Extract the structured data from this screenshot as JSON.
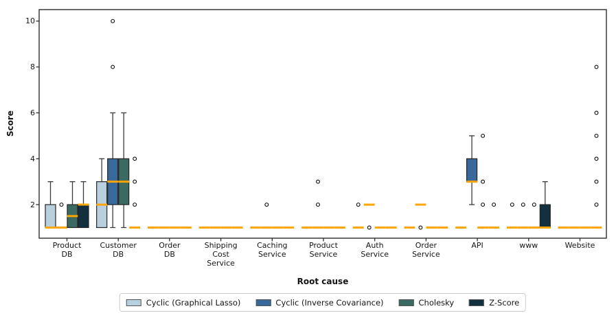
{
  "chart_data": {
    "type": "boxplot",
    "title": "",
    "xlabel": "Root cause",
    "ylabel": "Score",
    "yticks": [
      2,
      4,
      6,
      8,
      10
    ],
    "ylim": [
      0.5,
      10.5
    ],
    "grid": false,
    "legend_position": "bottom",
    "median_color": "#FFA500",
    "categories": [
      "Product\nDB",
      "Customer\nDB",
      "Order\nDB",
      "Shipping\nCost\nService",
      "Caching\nService",
      "Product\nService",
      "Auth\nService",
      "Order\nService",
      "API",
      "www",
      "Website"
    ],
    "series": [
      {
        "name": "Cyclic (Graphical Lasso)",
        "color": "#b8cfdd",
        "boxes": [
          {
            "q1": 1,
            "med": 1,
            "q3": 2,
            "whislo": 1,
            "whishi": 3,
            "fliers": []
          },
          {
            "q1": 1,
            "med": 2,
            "q3": 3,
            "whislo": 1,
            "whishi": 4,
            "fliers": []
          },
          {
            "q1": 1,
            "med": 1,
            "q3": 1,
            "whislo": 1,
            "whishi": 1,
            "fliers": []
          },
          {
            "q1": 1,
            "med": 1,
            "q3": 1,
            "whislo": 1,
            "whishi": 1,
            "fliers": []
          },
          {
            "q1": 1,
            "med": 1,
            "q3": 1,
            "whislo": 1,
            "whishi": 1,
            "fliers": []
          },
          {
            "q1": 1,
            "med": 1,
            "q3": 1,
            "whislo": 1,
            "whishi": 1,
            "fliers": []
          },
          {
            "q1": 1,
            "med": 1,
            "q3": 1,
            "whislo": 1,
            "whishi": 1,
            "fliers": [
              2
            ]
          },
          {
            "q1": 1,
            "med": 1,
            "q3": 1,
            "whislo": 1,
            "whishi": 1,
            "fliers": []
          },
          {
            "q1": 1,
            "med": 1,
            "q3": 1,
            "whislo": 1,
            "whishi": 1,
            "fliers": []
          },
          {
            "q1": 1,
            "med": 1,
            "q3": 1,
            "whislo": 1,
            "whishi": 1,
            "fliers": [
              2
            ]
          },
          {
            "q1": 1,
            "med": 1,
            "q3": 1,
            "whislo": 1,
            "whishi": 1,
            "fliers": []
          }
        ]
      },
      {
        "name": "Cyclic (Inverse Covariance)",
        "color": "#39699a",
        "boxes": [
          {
            "q1": 1,
            "med": 1,
            "q3": 1,
            "whislo": 1,
            "whishi": 1,
            "fliers": [
              2
            ]
          },
          {
            "q1": 2,
            "med": 3,
            "q3": 4,
            "whislo": 1,
            "whishi": 6,
            "fliers": [
              8,
              10
            ]
          },
          {
            "q1": 1,
            "med": 1,
            "q3": 1,
            "whislo": 1,
            "whishi": 1,
            "fliers": []
          },
          {
            "q1": 1,
            "med": 1,
            "q3": 1,
            "whislo": 1,
            "whishi": 1,
            "fliers": []
          },
          {
            "q1": 1,
            "med": 1,
            "q3": 1,
            "whislo": 1,
            "whishi": 1,
            "fliers": [
              2
            ]
          },
          {
            "q1": 1,
            "med": 1,
            "q3": 1,
            "whislo": 1,
            "whishi": 1,
            "fliers": [
              2,
              3
            ]
          },
          {
            "q1": 2,
            "med": 2,
            "q3": 2,
            "whislo": 2,
            "whishi": 2,
            "fliers": [
              1
            ]
          },
          {
            "q1": 2,
            "med": 2,
            "q3": 2,
            "whislo": 2,
            "whishi": 2,
            "fliers": [
              1
            ]
          },
          {
            "q1": 3,
            "med": 3,
            "q3": 4,
            "whislo": 2,
            "whishi": 5,
            "fliers": []
          },
          {
            "q1": 1,
            "med": 1,
            "q3": 1,
            "whislo": 1,
            "whishi": 1,
            "fliers": [
              2
            ]
          },
          {
            "q1": 1,
            "med": 1,
            "q3": 1,
            "whislo": 1,
            "whishi": 1,
            "fliers": []
          }
        ]
      },
      {
        "name": "Cholesky",
        "color": "#3a6a62",
        "boxes": [
          {
            "q1": 1,
            "med": 1.5,
            "q3": 2,
            "whislo": 1,
            "whishi": 3,
            "fliers": []
          },
          {
            "q1": 2,
            "med": 3,
            "q3": 4,
            "whislo": 1,
            "whishi": 6,
            "fliers": []
          },
          {
            "q1": 1,
            "med": 1,
            "q3": 1,
            "whislo": 1,
            "whishi": 1,
            "fliers": []
          },
          {
            "q1": 1,
            "med": 1,
            "q3": 1,
            "whislo": 1,
            "whishi": 1,
            "fliers": []
          },
          {
            "q1": 1,
            "med": 1,
            "q3": 1,
            "whislo": 1,
            "whishi": 1,
            "fliers": []
          },
          {
            "q1": 1,
            "med": 1,
            "q3": 1,
            "whislo": 1,
            "whishi": 1,
            "fliers": []
          },
          {
            "q1": 1,
            "med": 1,
            "q3": 1,
            "whislo": 1,
            "whishi": 1,
            "fliers": []
          },
          {
            "q1": 1,
            "med": 1,
            "q3": 1,
            "whislo": 1,
            "whishi": 1,
            "fliers": []
          },
          {
            "q1": 1,
            "med": 1,
            "q3": 1,
            "whislo": 1,
            "whishi": 1,
            "fliers": [
              2,
              3,
              5
            ]
          },
          {
            "q1": 1,
            "med": 1,
            "q3": 1,
            "whislo": 1,
            "whishi": 1,
            "fliers": [
              2
            ]
          },
          {
            "q1": 1,
            "med": 1,
            "q3": 1,
            "whislo": 1,
            "whishi": 1,
            "fliers": []
          }
        ]
      },
      {
        "name": "Z-Score",
        "color": "#12303e",
        "boxes": [
          {
            "q1": 1,
            "med": 2,
            "q3": 2,
            "whislo": 1,
            "whishi": 3,
            "fliers": []
          },
          {
            "q1": 1,
            "med": 1,
            "q3": 1,
            "whislo": 1,
            "whishi": 1,
            "fliers": [
              2,
              3,
              4
            ]
          },
          {
            "q1": 1,
            "med": 1,
            "q3": 1,
            "whislo": 1,
            "whishi": 1,
            "fliers": []
          },
          {
            "q1": 1,
            "med": 1,
            "q3": 1,
            "whislo": 1,
            "whishi": 1,
            "fliers": []
          },
          {
            "q1": 1,
            "med": 1,
            "q3": 1,
            "whislo": 1,
            "whishi": 1,
            "fliers": []
          },
          {
            "q1": 1,
            "med": 1,
            "q3": 1,
            "whislo": 1,
            "whishi": 1,
            "fliers": []
          },
          {
            "q1": 1,
            "med": 1,
            "q3": 1,
            "whislo": 1,
            "whishi": 1,
            "fliers": []
          },
          {
            "q1": 1,
            "med": 1,
            "q3": 1,
            "whislo": 1,
            "whishi": 1,
            "fliers": []
          },
          {
            "q1": 1,
            "med": 1,
            "q3": 1,
            "whislo": 1,
            "whishi": 1,
            "fliers": [
              2
            ]
          },
          {
            "q1": 1,
            "med": 1,
            "q3": 2,
            "whislo": 1,
            "whishi": 3,
            "fliers": []
          },
          {
            "q1": 1,
            "med": 1,
            "q3": 1,
            "whislo": 1,
            "whishi": 1,
            "fliers": [
              2,
              3,
              4,
              5,
              6,
              8
            ]
          }
        ]
      }
    ]
  }
}
